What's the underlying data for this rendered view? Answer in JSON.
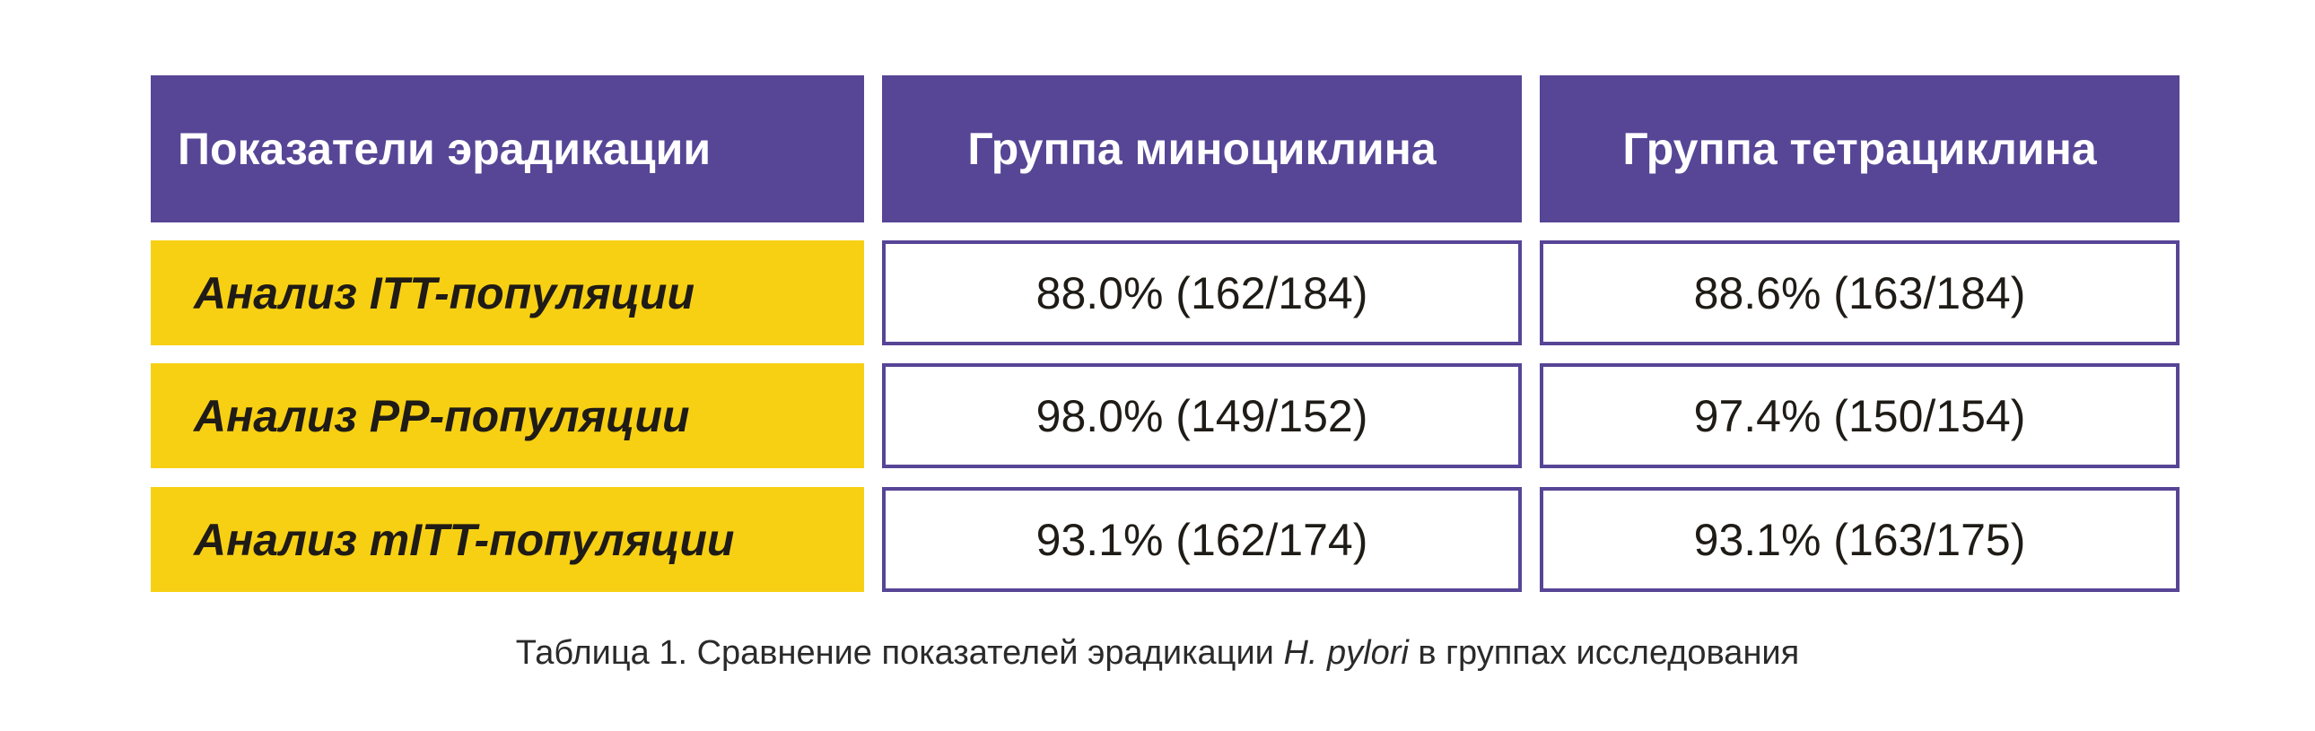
{
  "colors": {
    "header_bg": "#574596",
    "row_label_bg": "#f7d013",
    "cell_border": "#574596"
  },
  "table": {
    "headers": [
      "Показатели эрадикации",
      "Группа миноциклина",
      "Группа тетрациклина"
    ],
    "rows": [
      {
        "label": "Анализ ITT-популяции",
        "minocycline": "88.0% (162/184)",
        "tetracycline": "88.6% (163/184)"
      },
      {
        "label": "Анализ PP-популяции",
        "minocycline": "98.0% (149/152)",
        "tetracycline": "97.4% (150/154)"
      },
      {
        "label": "Анализ mITT-популяции",
        "minocycline": "93.1% (162/174)",
        "tetracycline": "93.1% (163/175)"
      }
    ]
  },
  "caption": {
    "prefix": "Таблица 1. Сравнение показателей эрадикации ",
    "italic": "H. pylori",
    "suffix": " в группах исследования"
  }
}
